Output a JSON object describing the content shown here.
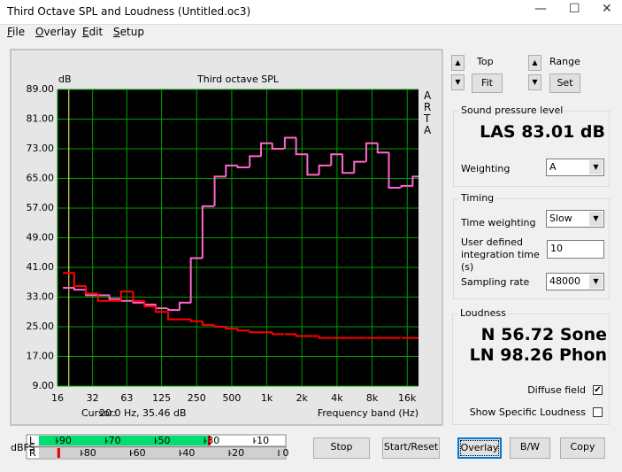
{
  "window": {
    "title": "Third Octave SPL and Loudness (Untitled.oc3)"
  },
  "menu": [
    "File",
    "Overlay",
    "Edit",
    "Setup"
  ],
  "chart_data": {
    "type": "line",
    "title": "Third octave SPL",
    "y_label": "dB",
    "x_label": "Frequency band (Hz)",
    "side_label": "ARTA",
    "xscale": "log",
    "step": true,
    "grid": true,
    "grid_color": "#00a000",
    "background": "#000000",
    "x": [
      20,
      25,
      31.5,
      40,
      50,
      63,
      80,
      100,
      125,
      160,
      200,
      250,
      315,
      400,
      500,
      630,
      800,
      1000,
      1250,
      1600,
      2000,
      2500,
      3150,
      4000,
      5000,
      6300,
      8000,
      10000,
      12500,
      16000,
      20000
    ],
    "series": [
      {
        "color": "#ff66cc",
        "values": [
          35.5,
          35,
          33.5,
          33.5,
          32.5,
          32,
          31.5,
          31,
          30,
          29.5,
          31.5,
          43.5,
          57.5,
          65.5,
          68.5,
          68,
          71,
          74.5,
          73,
          76,
          71.5,
          66,
          68.5,
          71.5,
          66.5,
          69.5,
          74.5,
          72,
          62.5,
          63,
          65.5
        ]
      },
      {
        "color": "#ff0000",
        "values": [
          39.5,
          36,
          34,
          32,
          32,
          34.5,
          32,
          30.5,
          29,
          27,
          27,
          26.5,
          25.5,
          25,
          24.5,
          24,
          23.5,
          23.5,
          23,
          23,
          22.5,
          22.5,
          22,
          22,
          22,
          22,
          22,
          22,
          22,
          22,
          22
        ]
      }
    ],
    "xlim": [
      16,
      20000
    ],
    "xticks": [
      16,
      32,
      63,
      125,
      250,
      500,
      {
        "value": 1000,
        "label": "1k"
      },
      {
        "value": 2000,
        "label": "2k"
      },
      {
        "value": 4000,
        "label": "4k"
      },
      {
        "value": 8000,
        "label": "8k"
      },
      {
        "value": 16000,
        "label": "16k"
      }
    ],
    "ylim": [
      9,
      89
    ],
    "yticks": [
      {
        "value": 89,
        "label": "89.00"
      },
      {
        "value": 81,
        "label": "81.00"
      },
      {
        "value": 73,
        "label": "73.00"
      },
      {
        "value": 65,
        "label": "65.00"
      },
      {
        "value": 57,
        "label": "57.00"
      },
      {
        "value": 49,
        "label": "49.00"
      },
      {
        "value": 41,
        "label": "41.00"
      },
      {
        "value": 33,
        "label": "33.00"
      },
      {
        "value": 25,
        "label": "25.00"
      },
      {
        "value": 17,
        "label": "17.00"
      },
      {
        "value": 9,
        "label": "9.00"
      }
    ],
    "cursor": {
      "label": "Cursor:",
      "text": "20.0 Hz, 35.46 dB",
      "x": 20,
      "color": "#ffff66"
    }
  },
  "controls": {
    "top": {
      "label": "Top",
      "button": "Fit"
    },
    "range": {
      "label": "Range",
      "button": "Set"
    }
  },
  "spl": {
    "group": "Sound pressure level",
    "reading": "LAS 83.01 dB",
    "weighting_label": "Weighting",
    "weighting": "A"
  },
  "timing": {
    "group": "Timing",
    "time_weighting_label": "Time weighting",
    "time_weighting": "Slow",
    "integration_label": "User defined integration time (s)",
    "integration": "10",
    "sampling_label": "Sampling rate",
    "sampling": "48000"
  },
  "loudness": {
    "group": "Loudness",
    "n": "N 56.72 Sone",
    "ln": "LN 98.26 Phon",
    "diffuse_label": "Diffuse field",
    "diffuse": true,
    "specific_label": "Show Specific Loudness",
    "specific": false
  },
  "meter": {
    "label": "dBFS",
    "channels": [
      "L",
      "R"
    ],
    "range": [
      -100,
      0
    ],
    "top_ticks": [
      -90,
      -70,
      -50,
      -30,
      -10
    ],
    "bottom_ticks": [
      -80,
      -60,
      -40,
      -20,
      0
    ],
    "levels": [
      -31,
      -92
    ]
  },
  "buttons": [
    "Stop",
    "Start/Reset",
    "Overlay",
    "B/W",
    "Copy"
  ]
}
